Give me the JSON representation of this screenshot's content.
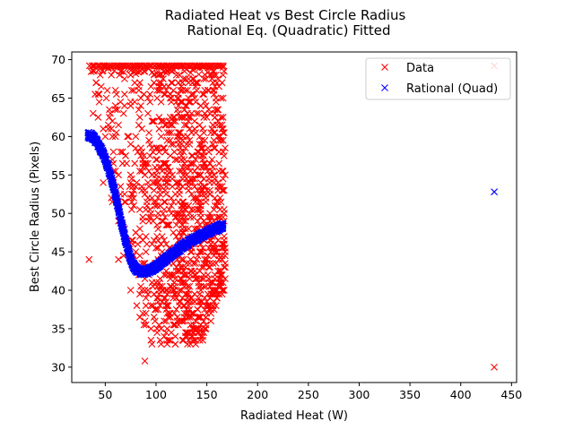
{
  "chart_data": {
    "type": "scatter",
    "title_line1": "Radiated Heat vs Best Circle Radius",
    "title_line2": "Rational Eq. (Quadratic) Fitted",
    "xlabel": "Radiated Heat (W)",
    "ylabel": "Best Circle Radius (Pixels)",
    "xlim": [
      17,
      455
    ],
    "ylim": [
      28,
      71
    ],
    "xticks": [
      50,
      100,
      150,
      200,
      250,
      300,
      350,
      400,
      450
    ],
    "yticks": [
      30,
      35,
      40,
      45,
      50,
      55,
      60,
      65,
      70
    ],
    "legend_position": "top-right",
    "series": [
      {
        "name": "Data",
        "color": "#ff0000",
        "marker": "x",
        "cluster": {
          "x_range": [
            35,
            168
          ],
          "y_range": [
            33,
            69.2
          ],
          "point_count": 1200,
          "ceiling_y": 69.2
        },
        "points": [
          [
            34,
            44
          ],
          [
            433,
            30
          ],
          [
            433,
            69.2
          ],
          [
            57,
            62
          ],
          [
            48,
            54
          ],
          [
            63,
            44
          ],
          [
            89,
            30.8
          ]
        ]
      },
      {
        "name": "Rational (Quad)",
        "color": "#0000ff",
        "marker": "x",
        "x": [
          33,
          36,
          38,
          41,
          44,
          47,
          50,
          53,
          56,
          59,
          62,
          65,
          68,
          71,
          74,
          77,
          80,
          83,
          86,
          89,
          92,
          95,
          98,
          101,
          104,
          107,
          110,
          113,
          116,
          119,
          122,
          125,
          128,
          131,
          134,
          137,
          140,
          143,
          146,
          149,
          152,
          155,
          158,
          161,
          164,
          166
        ],
        "y": [
          60.2,
          60.1,
          59.9,
          59.4,
          58.8,
          58.0,
          57.1,
          55.9,
          54.5,
          52.9,
          51.2,
          49.4,
          47.6,
          45.9,
          44.5,
          43.4,
          42.8,
          42.5,
          42.4,
          42.4,
          42.5,
          42.7,
          42.9,
          43.2,
          43.5,
          43.8,
          44.1,
          44.4,
          44.7,
          45.0,
          45.3,
          45.6,
          45.9,
          46.1,
          46.4,
          46.6,
          46.8,
          47.0,
          47.2,
          47.4,
          47.6,
          47.8,
          48.0,
          48.1,
          48.3,
          48.4
        ],
        "point_count": 1200,
        "extra_points": [
          [
            433,
            52.8
          ]
        ]
      }
    ]
  }
}
